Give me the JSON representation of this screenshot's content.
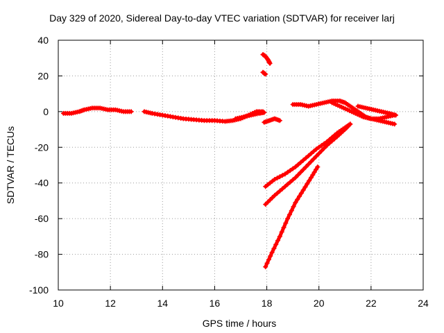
{
  "chart_data": {
    "type": "scatter",
    "title": "Day 329 of 2020, Sidereal Day-to-day VTEC variation (SDTVAR) for receiver larj",
    "xlabel": "GPS time / hours",
    "ylabel": "SDTVAR / TECUs",
    "xlim": [
      10,
      24
    ],
    "ylim": [
      -100,
      40
    ],
    "xticks": [
      10,
      12,
      14,
      16,
      18,
      20,
      22,
      24
    ],
    "yticks": [
      -100,
      -80,
      -60,
      -40,
      -20,
      0,
      20,
      40
    ],
    "grid": true,
    "marker_color": "#ff0000",
    "series": [
      {
        "name": "track-main",
        "points": [
          [
            10.2,
            -1
          ],
          [
            10.5,
            -1
          ],
          [
            10.8,
            0
          ],
          [
            11.0,
            1
          ],
          [
            11.3,
            2
          ],
          [
            11.6,
            2
          ],
          [
            11.9,
            1
          ],
          [
            12.2,
            1
          ],
          [
            12.5,
            0
          ],
          [
            12.8,
            0
          ]
        ]
      },
      {
        "name": "track-afternoon",
        "points": [
          [
            13.3,
            0
          ],
          [
            13.6,
            -1
          ],
          [
            14.0,
            -2
          ],
          [
            14.4,
            -3
          ],
          [
            14.8,
            -4
          ],
          [
            15.2,
            -4.5
          ],
          [
            15.6,
            -5
          ],
          [
            16.0,
            -5
          ],
          [
            16.4,
            -5.5
          ],
          [
            16.7,
            -5
          ],
          [
            17.0,
            -4
          ],
          [
            17.3,
            -2
          ],
          [
            17.6,
            0
          ],
          [
            17.85,
            0
          ]
        ]
      },
      {
        "name": "track-late-afternoon-band",
        "points": [
          [
            16.8,
            -4
          ],
          [
            17.1,
            -3
          ],
          [
            17.4,
            -2
          ],
          [
            17.7,
            -1
          ],
          [
            17.9,
            -0.5
          ]
        ]
      },
      {
        "name": "track-high-arc",
        "points": [
          [
            17.85,
            32
          ],
          [
            17.95,
            31
          ],
          [
            18.05,
            29
          ],
          [
            18.12,
            27
          ]
        ]
      },
      {
        "name": "track-short-dip",
        "points": [
          [
            17.85,
            22
          ],
          [
            17.95,
            21
          ]
        ]
      },
      {
        "name": "track-after-gap",
        "points": [
          [
            17.9,
            -6
          ],
          [
            18.1,
            -5
          ],
          [
            18.3,
            -4
          ],
          [
            18.5,
            -5
          ]
        ]
      },
      {
        "name": "track-evening",
        "points": [
          [
            19.0,
            4
          ],
          [
            19.3,
            4
          ],
          [
            19.6,
            3
          ],
          [
            19.9,
            4
          ],
          [
            20.2,
            5
          ],
          [
            20.5,
            6
          ],
          [
            20.8,
            6
          ],
          [
            21.0,
            5
          ],
          [
            21.2,
            3
          ],
          [
            21.4,
            1
          ],
          [
            21.6,
            -1
          ],
          [
            21.8,
            -3
          ],
          [
            22.0,
            -4
          ],
          [
            22.3,
            -4
          ],
          [
            22.6,
            -3
          ],
          [
            22.9,
            -2
          ]
        ]
      },
      {
        "name": "track-evening-2",
        "points": [
          [
            20.5,
            5
          ],
          [
            20.8,
            3
          ],
          [
            21.1,
            1
          ],
          [
            21.4,
            -1
          ],
          [
            21.7,
            -3
          ],
          [
            22.0,
            -4
          ],
          [
            22.3,
            -5
          ],
          [
            22.6,
            -6
          ],
          [
            22.9,
            -7
          ]
        ]
      },
      {
        "name": "track-evening-3",
        "points": [
          [
            21.5,
            3
          ],
          [
            21.8,
            2
          ],
          [
            22.1,
            1
          ],
          [
            22.4,
            0
          ],
          [
            22.7,
            -1
          ],
          [
            22.95,
            -2
          ]
        ]
      },
      {
        "name": "track-rising-1",
        "points": [
          [
            17.95,
            -42
          ],
          [
            18.3,
            -38
          ],
          [
            18.7,
            -35
          ],
          [
            19.1,
            -31
          ],
          [
            19.5,
            -26
          ],
          [
            19.9,
            -21
          ],
          [
            20.3,
            -17
          ],
          [
            20.7,
            -12
          ],
          [
            21.0,
            -9
          ],
          [
            21.2,
            -7
          ]
        ]
      },
      {
        "name": "track-rising-2",
        "points": [
          [
            17.95,
            -52
          ],
          [
            18.3,
            -47
          ],
          [
            18.7,
            -42
          ],
          [
            19.1,
            -37
          ],
          [
            19.5,
            -31
          ],
          [
            19.9,
            -25
          ],
          [
            20.3,
            -19
          ],
          [
            20.7,
            -14
          ],
          [
            21.0,
            -10
          ],
          [
            21.2,
            -7
          ]
        ]
      },
      {
        "name": "track-rising-3",
        "points": [
          [
            17.95,
            -87
          ],
          [
            18.2,
            -79
          ],
          [
            18.5,
            -70
          ],
          [
            18.8,
            -60
          ],
          [
            19.1,
            -51
          ],
          [
            19.4,
            -44
          ],
          [
            19.7,
            -37
          ],
          [
            19.95,
            -31
          ]
        ]
      }
    ]
  }
}
